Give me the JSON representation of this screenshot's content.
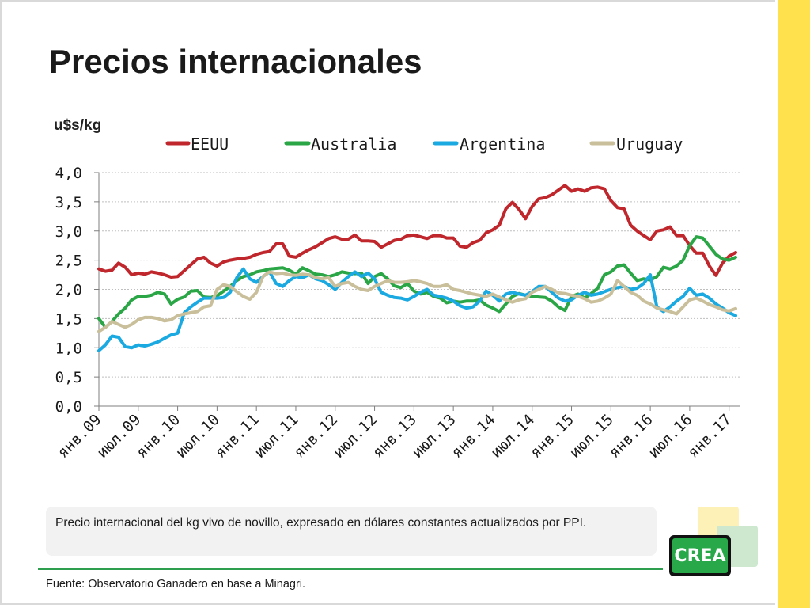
{
  "slide": {
    "title": "Precios internacionales",
    "note": "Precio internacional del kg vivo de novillo, expresado en dólares constantes actualizados por PPI.",
    "source": "Fuente: Observatorio Ganadero en base a Minagri.",
    "logo_text": "CREA"
  },
  "chart_data": {
    "type": "line",
    "title": "",
    "ylabel": "u$s/kg",
    "xlabel": "",
    "ylim": [
      0,
      4
    ],
    "yticks": [
      "0,0",
      "0,5",
      "1,0",
      "1,5",
      "2,0",
      "2,5",
      "3,0",
      "3,5",
      "4,0"
    ],
    "ytick_values": [
      0,
      0.5,
      1,
      1.5,
      2,
      2.5,
      3,
      3.5,
      4
    ],
    "grid": true,
    "legend_position": "top",
    "xtick_labels": [
      "янв.09",
      "июл.09",
      "янв.10",
      "июл.10",
      "янв.11",
      "июл.11",
      "янв.12",
      "июл.12",
      "янв.13",
      "июл.13",
      "янв.14",
      "июл.14",
      "янв.15",
      "июл.15",
      "янв.16",
      "июл.16",
      "янв.17"
    ],
    "x_months": [
      "2009-01",
      "2009-02",
      "2009-03",
      "2009-04",
      "2009-05",
      "2009-06",
      "2009-07",
      "2009-08",
      "2009-09",
      "2009-10",
      "2009-11",
      "2009-12",
      "2010-01",
      "2010-02",
      "2010-03",
      "2010-04",
      "2010-05",
      "2010-06",
      "2010-07",
      "2010-08",
      "2010-09",
      "2010-10",
      "2010-11",
      "2010-12",
      "2011-01",
      "2011-02",
      "2011-03",
      "2011-04",
      "2011-05",
      "2011-06",
      "2011-07",
      "2011-08",
      "2011-09",
      "2011-10",
      "2011-11",
      "2011-12",
      "2012-01",
      "2012-02",
      "2012-03",
      "2012-04",
      "2012-05",
      "2012-06",
      "2012-07",
      "2012-08",
      "2012-09",
      "2012-10",
      "2012-11",
      "2012-12",
      "2013-01",
      "2013-02",
      "2013-03",
      "2013-04",
      "2013-05",
      "2013-06",
      "2013-07",
      "2013-08",
      "2013-09",
      "2013-10",
      "2013-11",
      "2013-12",
      "2014-01",
      "2014-02",
      "2014-03",
      "2014-04",
      "2014-05",
      "2014-06",
      "2014-07",
      "2014-08",
      "2014-09",
      "2014-10",
      "2014-11",
      "2014-12",
      "2015-01",
      "2015-02",
      "2015-03",
      "2015-04",
      "2015-05",
      "2015-06",
      "2015-07",
      "2015-08",
      "2015-09",
      "2015-10",
      "2015-11",
      "2015-12",
      "2016-01",
      "2016-02",
      "2016-03",
      "2016-04",
      "2016-05",
      "2016-06",
      "2016-07",
      "2016-08",
      "2016-09",
      "2016-10",
      "2016-11",
      "2016-12",
      "2017-01",
      "2017-02"
    ],
    "series": [
      {
        "name": "EEUU",
        "color": "#c0272d",
        "values": [
          2.35,
          2.31,
          2.33,
          2.45,
          2.38,
          2.25,
          2.28,
          2.26,
          2.3,
          2.28,
          2.25,
          2.21,
          2.22,
          2.32,
          2.42,
          2.52,
          2.55,
          2.45,
          2.4,
          2.47,
          2.5,
          2.52,
          2.53,
          2.55,
          2.6,
          2.63,
          2.65,
          2.78,
          2.78,
          2.57,
          2.55,
          2.62,
          2.68,
          2.73,
          2.8,
          2.87,
          2.9,
          2.86,
          2.86,
          2.93,
          2.83,
          2.83,
          2.82,
          2.72,
          2.78,
          2.84,
          2.86,
          2.92,
          2.93,
          2.9,
          2.87,
          2.92,
          2.92,
          2.88,
          2.88,
          2.74,
          2.72,
          2.8,
          2.84,
          2.97,
          3.02,
          3.1,
          3.38,
          3.49,
          3.37,
          3.21,
          3.42,
          3.55,
          3.57,
          3.62,
          3.7,
          3.78,
          3.68,
          3.72,
          3.68,
          3.74,
          3.75,
          3.72,
          3.52,
          3.4,
          3.38,
          3.1,
          3.0,
          2.92,
          2.85,
          3.0,
          3.02,
          3.07,
          2.92,
          2.92,
          2.75,
          2.62,
          2.62,
          2.4,
          2.24,
          2.45,
          2.57,
          2.63
        ]
      },
      {
        "name": "Australia",
        "color": "#2aa646",
        "values": [
          1.5,
          1.35,
          1.45,
          1.58,
          1.68,
          1.82,
          1.88,
          1.88,
          1.9,
          1.95,
          1.92,
          1.75,
          1.83,
          1.87,
          1.97,
          1.98,
          1.87,
          1.86,
          1.89,
          1.97,
          2.05,
          2.15,
          2.22,
          2.25,
          2.3,
          2.32,
          2.35,
          2.36,
          2.37,
          2.33,
          2.26,
          2.37,
          2.32,
          2.26,
          2.25,
          2.22,
          2.25,
          2.3,
          2.28,
          2.27,
          2.28,
          2.1,
          2.22,
          2.27,
          2.18,
          2.06,
          2.03,
          2.1,
          1.97,
          1.92,
          1.95,
          1.88,
          1.85,
          1.77,
          1.8,
          1.78,
          1.8,
          1.8,
          1.82,
          1.73,
          1.68,
          1.62,
          1.75,
          1.88,
          1.93,
          1.9,
          1.88,
          1.87,
          1.86,
          1.8,
          1.7,
          1.64,
          1.88,
          1.92,
          1.85,
          1.93,
          2.02,
          2.25,
          2.3,
          2.4,
          2.42,
          2.28,
          2.15,
          2.18,
          2.16,
          2.22,
          2.38,
          2.35,
          2.4,
          2.5,
          2.75,
          2.9,
          2.88,
          2.74,
          2.6,
          2.52,
          2.5,
          2.55
        ]
      },
      {
        "name": "Argentina",
        "color": "#1aa9e1",
        "values": [
          0.95,
          1.05,
          1.2,
          1.18,
          1.02,
          1.0,
          1.05,
          1.03,
          1.06,
          1.1,
          1.16,
          1.22,
          1.25,
          1.6,
          1.7,
          1.78,
          1.85,
          1.85,
          1.85,
          1.86,
          1.95,
          2.2,
          2.35,
          2.18,
          2.12,
          2.22,
          2.3,
          2.1,
          2.05,
          2.15,
          2.22,
          2.2,
          2.25,
          2.18,
          2.15,
          2.08,
          2.0,
          2.12,
          2.22,
          2.3,
          2.22,
          2.28,
          2.18,
          1.95,
          1.9,
          1.86,
          1.85,
          1.82,
          1.88,
          1.95,
          2.0,
          1.9,
          1.88,
          1.85,
          1.8,
          1.72,
          1.68,
          1.7,
          1.8,
          1.97,
          1.9,
          1.8,
          1.92,
          1.95,
          1.92,
          1.9,
          1.96,
          2.05,
          2.05,
          1.95,
          1.85,
          1.8,
          1.82,
          1.9,
          1.95,
          1.9,
          1.92,
          1.96,
          2.0,
          2.03,
          2.05,
          2.0,
          2.02,
          2.1,
          2.25,
          1.7,
          1.62,
          1.7,
          1.8,
          1.88,
          2.02,
          1.9,
          1.92,
          1.85,
          1.75,
          1.68,
          1.6,
          1.55
        ]
      },
      {
        "name": "Uruguay",
        "color": "#c9bf9a",
        "values": [
          1.28,
          1.35,
          1.45,
          1.4,
          1.35,
          1.4,
          1.48,
          1.52,
          1.52,
          1.5,
          1.46,
          1.48,
          1.55,
          1.58,
          1.6,
          1.62,
          1.7,
          1.72,
          2.0,
          2.08,
          2.05,
          1.96,
          1.88,
          1.83,
          1.95,
          2.22,
          2.3,
          2.27,
          2.28,
          2.25,
          2.24,
          2.26,
          2.25,
          2.2,
          2.18,
          2.2,
          2.05,
          2.1,
          2.12,
          2.05,
          2.0,
          1.98,
          2.05,
          2.1,
          2.15,
          2.12,
          2.12,
          2.13,
          2.15,
          2.13,
          2.1,
          2.05,
          2.05,
          2.08,
          2.0,
          1.98,
          1.95,
          1.92,
          1.9,
          1.88,
          1.92,
          1.87,
          1.82,
          1.78,
          1.82,
          1.84,
          1.95,
          2.0,
          2.05,
          2.0,
          1.94,
          1.93,
          1.9,
          1.88,
          1.84,
          1.78,
          1.8,
          1.85,
          1.92,
          2.15,
          2.05,
          1.95,
          1.9,
          1.8,
          1.75,
          1.68,
          1.65,
          1.62,
          1.58,
          1.7,
          1.82,
          1.85,
          1.8,
          1.74,
          1.7,
          1.65,
          1.63,
          1.67
        ]
      }
    ]
  }
}
